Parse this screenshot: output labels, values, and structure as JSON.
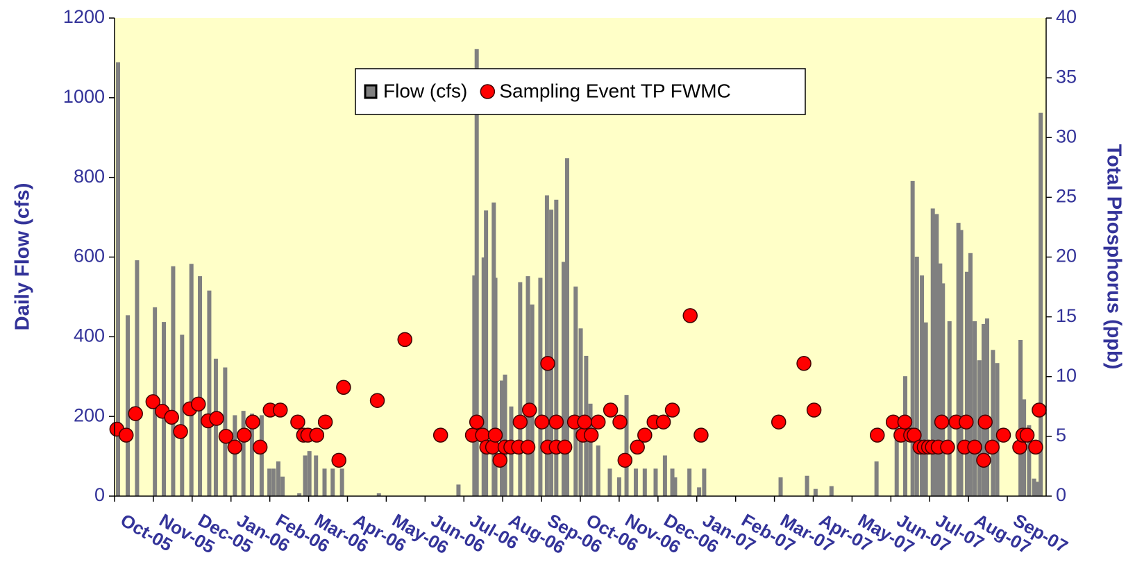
{
  "chart_data": {
    "type": "bar-scatter",
    "x_axis": {
      "xlim": [
        0,
        24
      ],
      "xticks": [
        {
          "value": 0,
          "label": "Oct-05"
        },
        {
          "value": 1,
          "label": "Nov-05"
        },
        {
          "value": 2,
          "label": "Dec-05"
        },
        {
          "value": 3,
          "label": "Jan-06"
        },
        {
          "value": 4,
          "label": "Feb-06"
        },
        {
          "value": 5,
          "label": "Mar-06"
        },
        {
          "value": 6,
          "label": "Apr-06"
        },
        {
          "value": 7,
          "label": "May-06"
        },
        {
          "value": 8,
          "label": "Jun-06"
        },
        {
          "value": 9,
          "label": "Jul-06"
        },
        {
          "value": 10,
          "label": "Aug-06"
        },
        {
          "value": 11,
          "label": "Sep-06"
        },
        {
          "value": 12,
          "label": "Oct-06"
        },
        {
          "value": 13,
          "label": "Nov-06"
        },
        {
          "value": 14,
          "label": "Dec-06"
        },
        {
          "value": 15,
          "label": "Jan-07"
        },
        {
          "value": 16,
          "label": "Feb-07"
        },
        {
          "value": 17,
          "label": "Mar-07"
        },
        {
          "value": 18,
          "label": "Apr-07"
        },
        {
          "value": 19,
          "label": "May-07"
        },
        {
          "value": 20,
          "label": "Jun-07"
        },
        {
          "value": 21,
          "label": "Jul-07"
        },
        {
          "value": 22,
          "label": "Aug-07"
        },
        {
          "value": 23,
          "label": "Sep-07"
        }
      ]
    },
    "y_label": "Daily Flow (cfs)",
    "ylim": [
      0,
      1200
    ],
    "yticks": [
      0,
      200,
      400,
      600,
      800,
      1000,
      1200
    ],
    "y2_label": "Total Phosphorus (ppb)",
    "y2lim": [
      0,
      40
    ],
    "y2ticks": [
      0,
      5,
      10,
      15,
      20,
      25,
      30,
      35,
      40
    ],
    "grid": false,
    "legend": "upper center",
    "background": "#ffffc8",
    "series": [
      {
        "name": "Flow (cfs)",
        "type": "bar",
        "color": "#808080",
        "x": [
          0.09,
          0.34,
          0.58,
          1.04,
          1.27,
          1.51,
          1.74,
          1.98,
          2.2,
          2.44,
          2.61,
          2.85,
          3.1,
          3.32,
          3.54,
          3.79,
          3.99,
          4.1,
          4.22,
          4.33,
          4.76,
          4.91,
          5.02,
          5.19,
          5.41,
          5.62,
          5.86,
          6.81,
          8.86,
          9.27,
          9.33,
          9.51,
          9.57,
          9.77,
          9.81,
          9.98,
          10.06,
          10.22,
          10.45,
          10.65,
          10.76,
          10.97,
          11.14,
          11.25,
          11.38,
          11.57,
          11.66,
          11.88,
          12.01,
          12.15,
          12.26,
          12.46,
          12.76,
          13.0,
          13.19,
          13.43,
          13.66,
          13.94,
          14.18,
          14.37,
          14.44,
          14.81,
          15.06,
          15.19,
          17.16,
          17.84,
          18.06,
          18.47,
          19.63,
          20.15,
          20.37,
          20.56,
          20.67,
          20.8,
          20.9,
          21.08,
          21.18,
          21.27,
          21.34,
          21.51,
          21.74,
          21.81,
          21.96,
          22.05,
          22.16,
          22.28,
          22.39,
          22.48,
          22.63,
          22.74,
          23.34,
          23.43,
          23.56,
          23.69,
          23.79,
          23.86
        ],
        "values": [
          1089,
          454,
          592,
          474,
          437,
          577,
          405,
          583,
          552,
          516,
          345,
          323,
          203,
          214,
          207,
          203,
          69,
          69,
          87,
          49,
          7,
          102,
          113,
          102,
          69,
          69,
          69,
          7,
          29,
          554,
          1122,
          599,
          717,
          737,
          548,
          290,
          305,
          225,
          537,
          552,
          481,
          548,
          755,
          719,
          744,
          588,
          848,
          526,
          421,
          352,
          232,
          127,
          69,
          47,
          254,
          69,
          69,
          69,
          102,
          69,
          47,
          69,
          22,
          69,
          47,
          51,
          18,
          25,
          87,
          180,
          301,
          791,
          601,
          554,
          436,
          722,
          708,
          584,
          534,
          439,
          686,
          668,
          563,
          610,
          439,
          341,
          432,
          446,
          367,
          334,
          392,
          243,
          178,
          44,
          36,
          962
        ]
      },
      {
        "name": "Sampling Event TP FWMC",
        "type": "scatter",
        "axis": "y2",
        "color": "#ff0000",
        "x": [
          0.06,
          0.3,
          0.54,
          0.99,
          1.23,
          1.47,
          1.7,
          1.94,
          2.16,
          2.41,
          2.63,
          2.87,
          3.1,
          3.34,
          3.56,
          3.75,
          4.01,
          4.27,
          4.72,
          4.87,
          4.98,
          5.21,
          5.43,
          5.78,
          5.9,
          6.77,
          7.48,
          8.4,
          9.22,
          9.33,
          9.48,
          9.59,
          9.74,
          9.81,
          9.93,
          10.06,
          10.21,
          10.41,
          10.45,
          10.65,
          10.69,
          11.01,
          11.16,
          11.16,
          11.38,
          11.38,
          11.6,
          11.85,
          12.07,
          12.11,
          12.28,
          12.46,
          12.78,
          13.02,
          13.15,
          13.47,
          13.66,
          13.9,
          14.14,
          14.37,
          14.83,
          15.11,
          17.11,
          17.76,
          18.02,
          19.65,
          20.06,
          20.26,
          20.36,
          20.51,
          20.6,
          20.75,
          20.86,
          20.97,
          21.07,
          21.22,
          21.31,
          21.46,
          21.68,
          21.9,
          21.94,
          22.16,
          22.39,
          22.43,
          22.61,
          22.9,
          23.32,
          23.4,
          23.51,
          23.73,
          23.82
        ],
        "values": [
          5.6,
          5.1,
          6.9,
          7.9,
          7.1,
          6.6,
          5.4,
          7.3,
          7.7,
          6.3,
          6.5,
          5,
          4.1,
          5.1,
          6.2,
          4.1,
          7.2,
          7.2,
          6.2,
          5.1,
          5.1,
          5.1,
          6.2,
          3,
          9.1,
          8,
          13.1,
          5.1,
          5.1,
          6.2,
          5.1,
          4.1,
          4.1,
          5.1,
          3,
          4.1,
          4.1,
          4.1,
          6.2,
          4.1,
          7.2,
          6.2,
          11.1,
          4.1,
          4.1,
          6.2,
          4.1,
          6.2,
          5.1,
          6.2,
          5.1,
          6.2,
          7.2,
          6.2,
          3,
          4.1,
          5.1,
          6.2,
          6.2,
          7.2,
          15.1,
          5.1,
          6.2,
          11.1,
          7.2,
          5.1,
          6.2,
          5.1,
          6.2,
          5.1,
          5.1,
          4.1,
          4.1,
          4.1,
          4.1,
          4.1,
          6.2,
          4.1,
          6.2,
          4.1,
          6.2,
          4.1,
          3,
          6.2,
          4.1,
          5.1,
          4.1,
          5.1,
          5.1,
          4.1,
          7.2
        ]
      }
    ]
  }
}
